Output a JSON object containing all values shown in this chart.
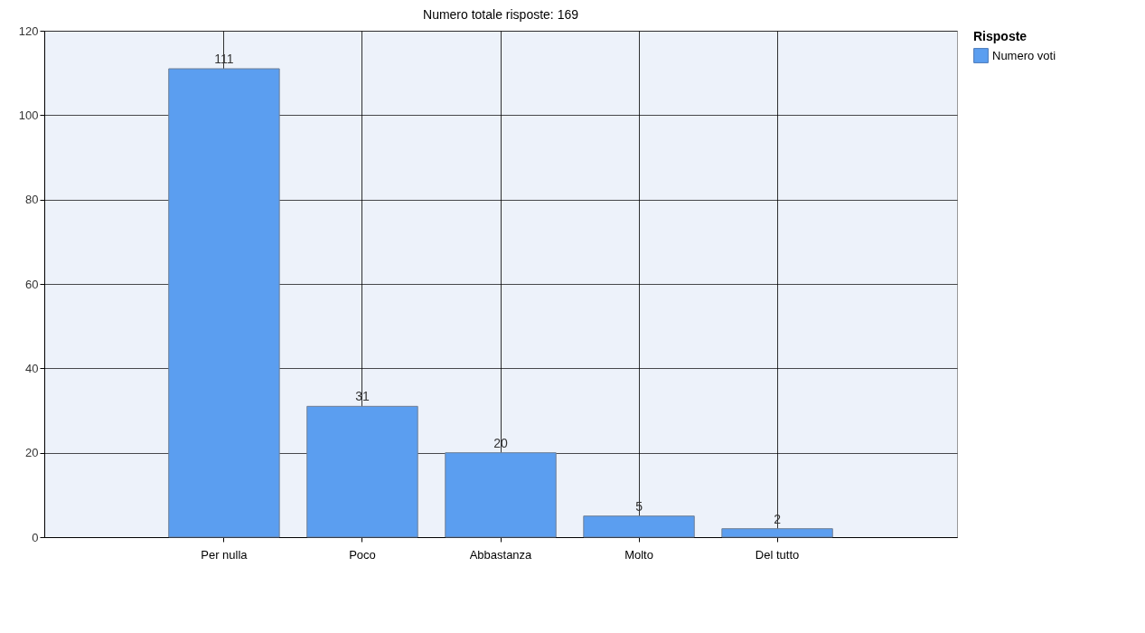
{
  "chart_data": {
    "type": "bar",
    "title": "Numero totale risposte: 169",
    "legend_title": "Risposte",
    "categories": [
      "Per nulla",
      "Poco",
      "Abbastanza",
      "Molto",
      "Del tutto"
    ],
    "series": [
      {
        "name": "Numero voti",
        "color": "#5b9ef0",
        "values": [
          111,
          31,
          20,
          5,
          2
        ]
      }
    ],
    "ylim": [
      0,
      120
    ],
    "yticks": [
      0,
      20,
      40,
      60,
      80,
      100,
      120
    ],
    "grid": true,
    "legend": "top right",
    "data_labels": true
  }
}
